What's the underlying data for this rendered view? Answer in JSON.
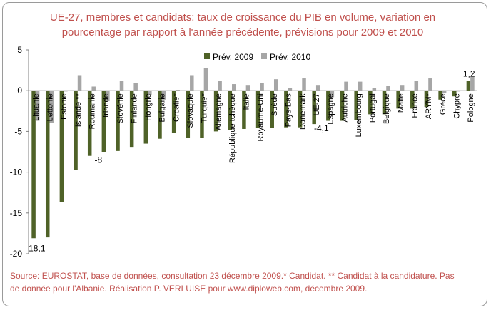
{
  "title": {
    "line1": "UE-27, membres et candidats: taux de croissance du PIB en volume, variation en",
    "line2": "pourcentage par rapport à l'année précédente, prévisions pour 2009 et 2010"
  },
  "source": {
    "line1": "Source: EUROSTAT, base de données, consultation 23 décembre 2009.* Candidat. ** Candidat à la candidature. Pas",
    "line2": "de donnée pour l'Albanie. Réalisation P. VERLUISE pour www.diploweb.com,  décembre 2009."
  },
  "colors": {
    "series_2009": "#4f6228",
    "series_2010": "#a6a6a6",
    "title_text": "#c0504d",
    "axis": "#808080"
  },
  "chart_data": {
    "type": "bar",
    "ylim": [
      -20,
      5
    ],
    "yticks": [
      5,
      0,
      -5,
      -10,
      -15,
      -20
    ],
    "grid": false,
    "legend_position": "top-center",
    "categories": [
      "Lituanie",
      "Lettonie",
      "Estonie",
      "Islande **",
      "Roumanie",
      "Irlande",
      "Slovénie",
      "Finlande",
      "Hongrie",
      "Bulgarie",
      "Croatie*",
      "Slovaquie",
      "Turquie*",
      "Allemagne",
      "République tchèque",
      "Italie",
      "Royaume-Uni",
      "Suède",
      "Pays-Bas",
      "Danemark",
      "UE-27",
      "Espagne",
      "Autriche",
      "Luxembourg",
      "Portugal",
      "Belgique",
      "Malte",
      "France",
      "ARYM*",
      "Grèce",
      "Chypre",
      "Pologne"
    ],
    "series": [
      {
        "name": "Prév. 2009",
        "values": [
          -18.1,
          -18.0,
          -13.7,
          -9.7,
          -8.0,
          -7.5,
          -7.4,
          -6.9,
          -6.5,
          -5.9,
          -5.2,
          -5.8,
          -5.8,
          -5.0,
          -4.8,
          -4.7,
          -4.6,
          -4.6,
          -4.5,
          -4.5,
          -4.1,
          -3.7,
          -3.7,
          -3.6,
          -2.9,
          -2.9,
          -2.2,
          -2.2,
          -2.0,
          -1.1,
          -0.7,
          1.2
        ]
      },
      {
        "name": "Prév. 2010",
        "values": [
          -3.7,
          -4.0,
          -0.1,
          1.9,
          0.5,
          -1.3,
          1.2,
          0.9,
          -0.5,
          -1.1,
          0.1,
          1.9,
          2.8,
          1.2,
          0.8,
          0.7,
          0.9,
          1.4,
          0.3,
          1.5,
          0.7,
          -0.8,
          1.1,
          1.1,
          0.3,
          0.6,
          0.7,
          1.2,
          1.5,
          -0.3,
          -0.1,
          1.8
        ]
      }
    ],
    "data_labels": [
      {
        "category": "Lituanie",
        "text": "-18,1"
      },
      {
        "category": "Roumanie",
        "text": "-8"
      },
      {
        "category": "UE-27",
        "text": "-4,1"
      },
      {
        "category": "Pologne",
        "text": "1,2"
      }
    ]
  }
}
